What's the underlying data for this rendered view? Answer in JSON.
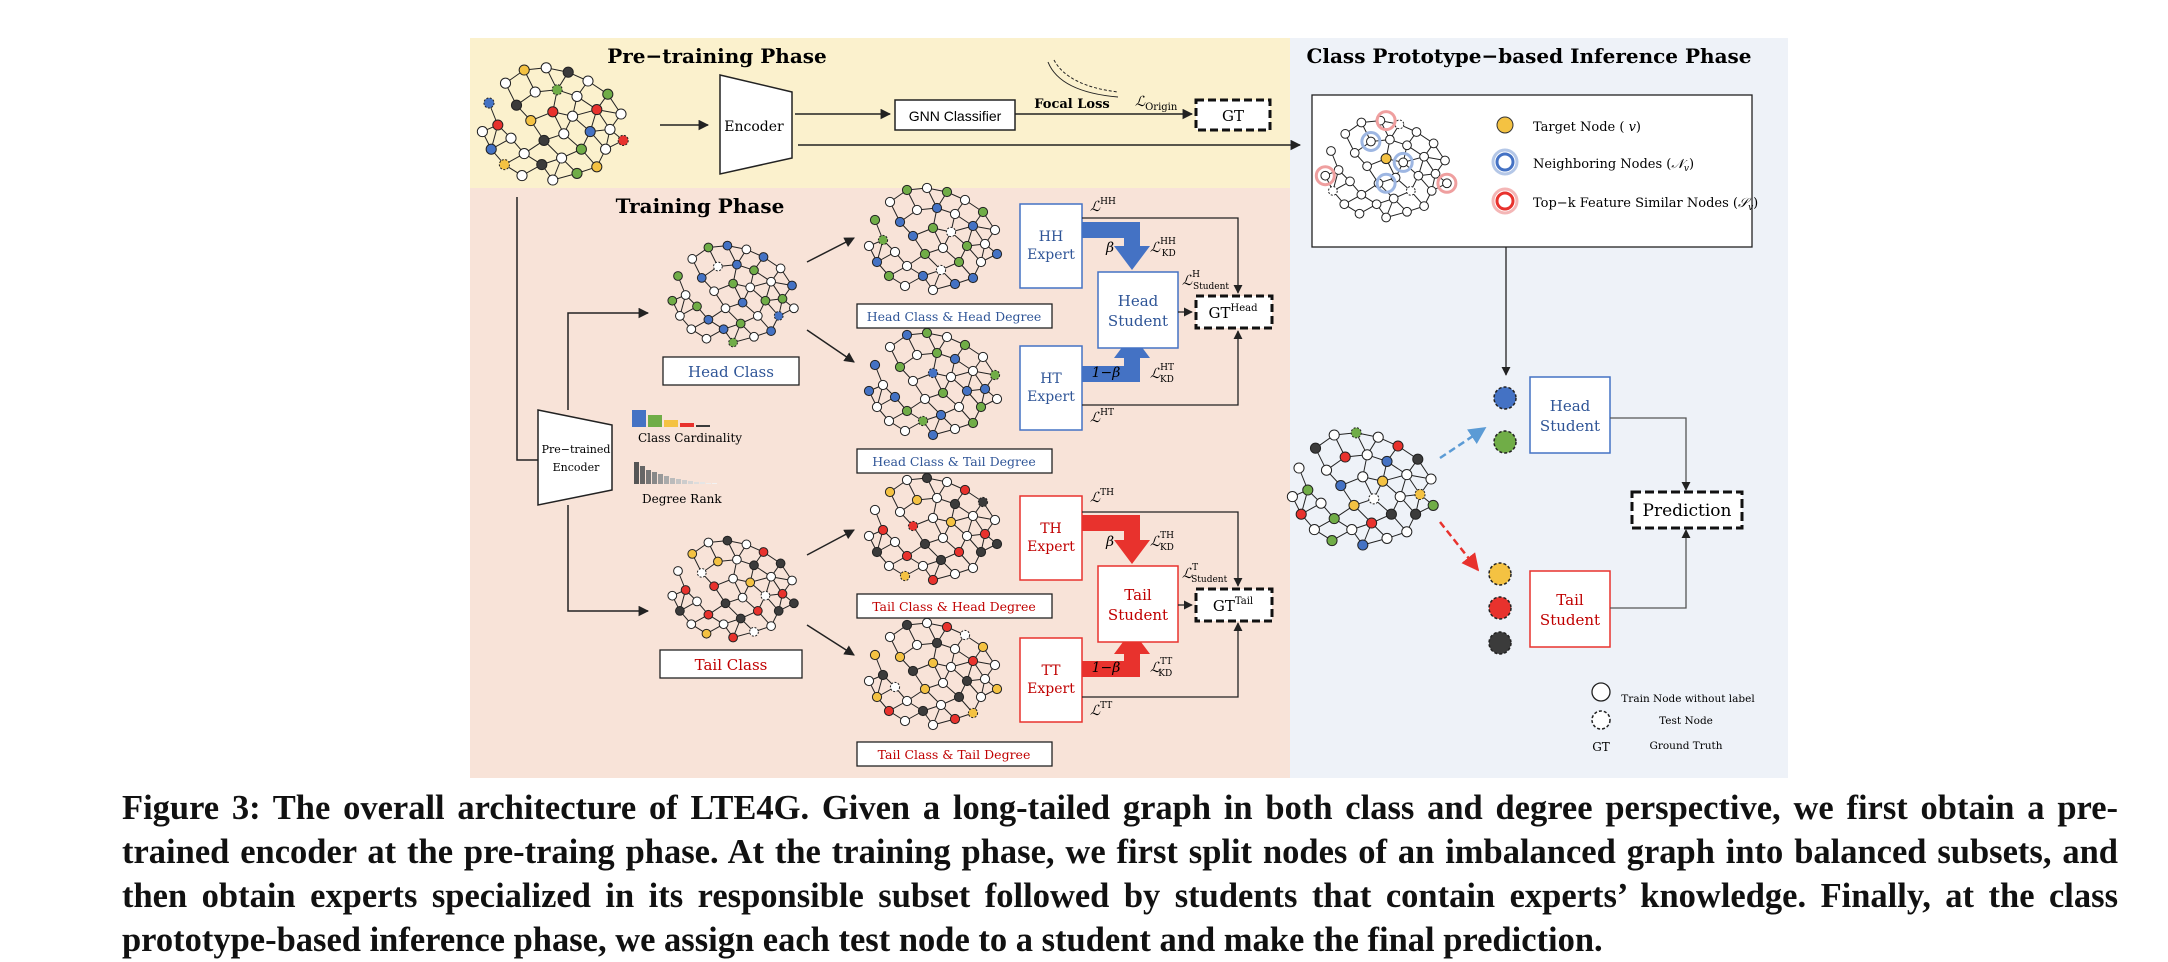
{
  "figure": {
    "pretrain": {
      "title": "Pre−training Phase",
      "encoder": "Encoder",
      "classifier": "GNN Classifier",
      "focal_loss": "Focal Loss",
      "loss_origin_sym": "ℒ",
      "loss_origin_sub": "Origin",
      "gt": "GT"
    },
    "training": {
      "title": "Training Phase",
      "pretrained_encoder_l1": "Pre−trained",
      "pretrained_encoder_l2": "Encoder",
      "class_cardinality": "Class Cardinality",
      "degree_rank": "Degree Rank",
      "head_class": "Head Class",
      "tail_class": "Tail Class",
      "subsets": [
        "Head Class & Head Degree",
        "Head Class & Tail Degree",
        "Tail Class & Head Degree",
        "Tail Class & Tail Degree"
      ],
      "experts": [
        {
          "l1": "HH",
          "l2": "Expert",
          "loss_sup": "HH",
          "kd_sup": "HH",
          "weight": "β"
        },
        {
          "l1": "HT",
          "l2": "Expert",
          "loss_sup": "HT",
          "kd_sup": "HT",
          "weight": "1−β"
        },
        {
          "l1": "TH",
          "l2": "Expert",
          "loss_sup": "TH",
          "kd_sup": "TH",
          "weight": "β"
        },
        {
          "l1": "TT",
          "l2": "Expert",
          "loss_sup": "TT",
          "kd_sup": "TT",
          "weight": "1−β"
        }
      ],
      "head_student_l1": "Head",
      "head_student_l2": "Student",
      "tail_student_l1": "Tail",
      "tail_student_l2": "Student",
      "loss_student_head_sup": "H",
      "loss_student_tail_sup": "T",
      "loss_student_sub": "Student",
      "kd_sub": "KD",
      "gt": "GT",
      "gt_head_sup": "Head",
      "gt_tail_sup": "Tail"
    },
    "inference": {
      "title": "Class Prototype−based Inference Phase",
      "legend": [
        {
          "label": "Target Node ( ",
          "sym": "v",
          "tail": ")"
        },
        {
          "label": "Neighboring Nodes (",
          "sym": "𝒩",
          "sub": "v",
          "tail": ")"
        },
        {
          "label": "Top−k Feature Similar Nodes (",
          "sym": "𝒮",
          "sub": "v",
          "tail": ")"
        }
      ],
      "head_student_l1": "Head",
      "head_student_l2": "Student",
      "tail_student_l1": "Tail",
      "tail_student_l2": "Student",
      "prediction": "Prediction",
      "key": [
        {
          "label": "Train Node without label"
        },
        {
          "label": "Test Node"
        },
        {
          "sym": "GT",
          "label": "Ground Truth"
        }
      ]
    },
    "colors": {
      "pretrain_bg": "#fbf1cd",
      "training_bg": "#f8e3d8",
      "inference_bg": "#eef2f8",
      "blue": "#4472c4",
      "red": "#e8322d",
      "green": "#70ad47",
      "yellow": "#f4c242",
      "dark": "#3b3b3b"
    }
  },
  "caption": {
    "label": "Figure 3:",
    "text": " The overall architecture of LTE4G. Given a long-tailed graph in both class and degree perspective, we first obtain a pre-trained encoder at the pre-traing phase. At the training phase, we first split nodes of an imbalanced graph into balanced subsets, and then obtain experts specialized in its responsible subset followed by students that contain experts’ knowledge. Finally, at the class prototype-based inference phase, we assign each test node to a student and make the final prediction."
  }
}
